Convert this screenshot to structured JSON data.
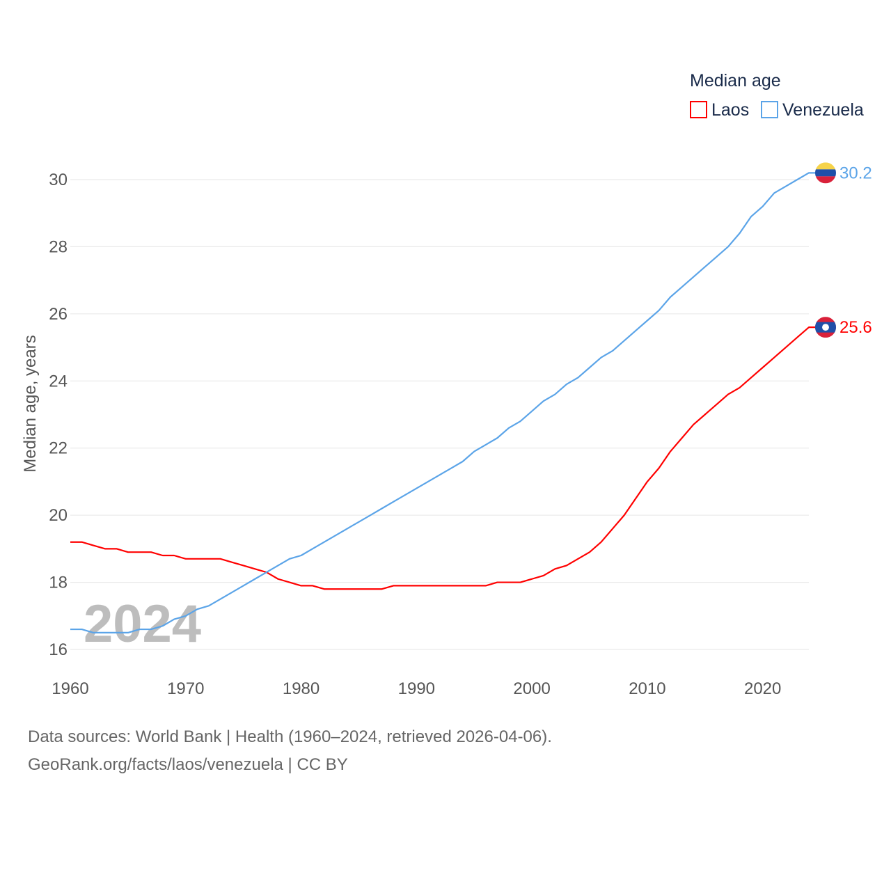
{
  "chart_data": {
    "type": "line",
    "title": "",
    "xlabel": "",
    "ylabel": "Median age, years",
    "xlim": [
      1960,
      2024
    ],
    "ylim": [
      16,
      30
    ],
    "x_ticks": [
      "1960",
      "1970",
      "1980",
      "1990",
      "2000",
      "2010",
      "2020"
    ],
    "y_ticks": [
      "16",
      "18",
      "20",
      "22",
      "24",
      "26",
      "28",
      "30"
    ],
    "grid": true,
    "legend": {
      "title": "Median age",
      "placement": "top-right"
    },
    "watermark_year": "2024",
    "x": [
      1960,
      1961,
      1962,
      1963,
      1964,
      1965,
      1966,
      1967,
      1968,
      1969,
      1970,
      1971,
      1972,
      1973,
      1974,
      1975,
      1976,
      1977,
      1978,
      1979,
      1980,
      1981,
      1982,
      1983,
      1984,
      1985,
      1986,
      1987,
      1988,
      1989,
      1990,
      1991,
      1992,
      1993,
      1994,
      1995,
      1996,
      1997,
      1998,
      1999,
      2000,
      2001,
      2002,
      2003,
      2004,
      2005,
      2006,
      2007,
      2008,
      2009,
      2010,
      2011,
      2012,
      2013,
      2014,
      2015,
      2016,
      2017,
      2018,
      2019,
      2020,
      2021,
      2022,
      2023,
      2024
    ],
    "series": [
      {
        "name": "Laos",
        "color": "#ff0000",
        "end_label": "25.6",
        "values": [
          19.2,
          19.2,
          19.1,
          19.0,
          19.0,
          18.9,
          18.9,
          18.9,
          18.8,
          18.8,
          18.7,
          18.7,
          18.7,
          18.7,
          18.6,
          18.5,
          18.4,
          18.3,
          18.1,
          18.0,
          17.9,
          17.9,
          17.8,
          17.8,
          17.8,
          17.8,
          17.8,
          17.8,
          17.9,
          17.9,
          17.9,
          17.9,
          17.9,
          17.9,
          17.9,
          17.9,
          17.9,
          18.0,
          18.0,
          18.0,
          18.1,
          18.2,
          18.4,
          18.5,
          18.7,
          18.9,
          19.2,
          19.6,
          20.0,
          20.5,
          21.0,
          21.4,
          21.9,
          22.3,
          22.7,
          23.0,
          23.3,
          23.6,
          23.8,
          24.1,
          24.4,
          24.7,
          25.0,
          25.3,
          25.6
        ]
      },
      {
        "name": "Venezuela",
        "color": "#5ba4e8",
        "end_label": "30.2",
        "values": [
          16.6,
          16.6,
          16.5,
          16.5,
          16.5,
          16.5,
          16.6,
          16.6,
          16.7,
          16.9,
          17.0,
          17.2,
          17.3,
          17.5,
          17.7,
          17.9,
          18.1,
          18.3,
          18.5,
          18.7,
          18.8,
          19.0,
          19.2,
          19.4,
          19.6,
          19.8,
          20.0,
          20.2,
          20.4,
          20.6,
          20.8,
          21.0,
          21.2,
          21.4,
          21.6,
          21.9,
          22.1,
          22.3,
          22.6,
          22.8,
          23.1,
          23.4,
          23.6,
          23.9,
          24.1,
          24.4,
          24.7,
          24.9,
          25.2,
          25.5,
          25.8,
          26.1,
          26.5,
          26.8,
          27.1,
          27.4,
          27.7,
          28.0,
          28.4,
          28.9,
          29.2,
          29.6,
          29.8,
          30.0,
          30.2
        ]
      }
    ]
  },
  "footer": {
    "line1": "Data sources: World Bank | Health (1960–2024, retrieved 2026-04-06).",
    "line2": "GeoRank.org/facts/laos/venezuela | CC BY"
  }
}
